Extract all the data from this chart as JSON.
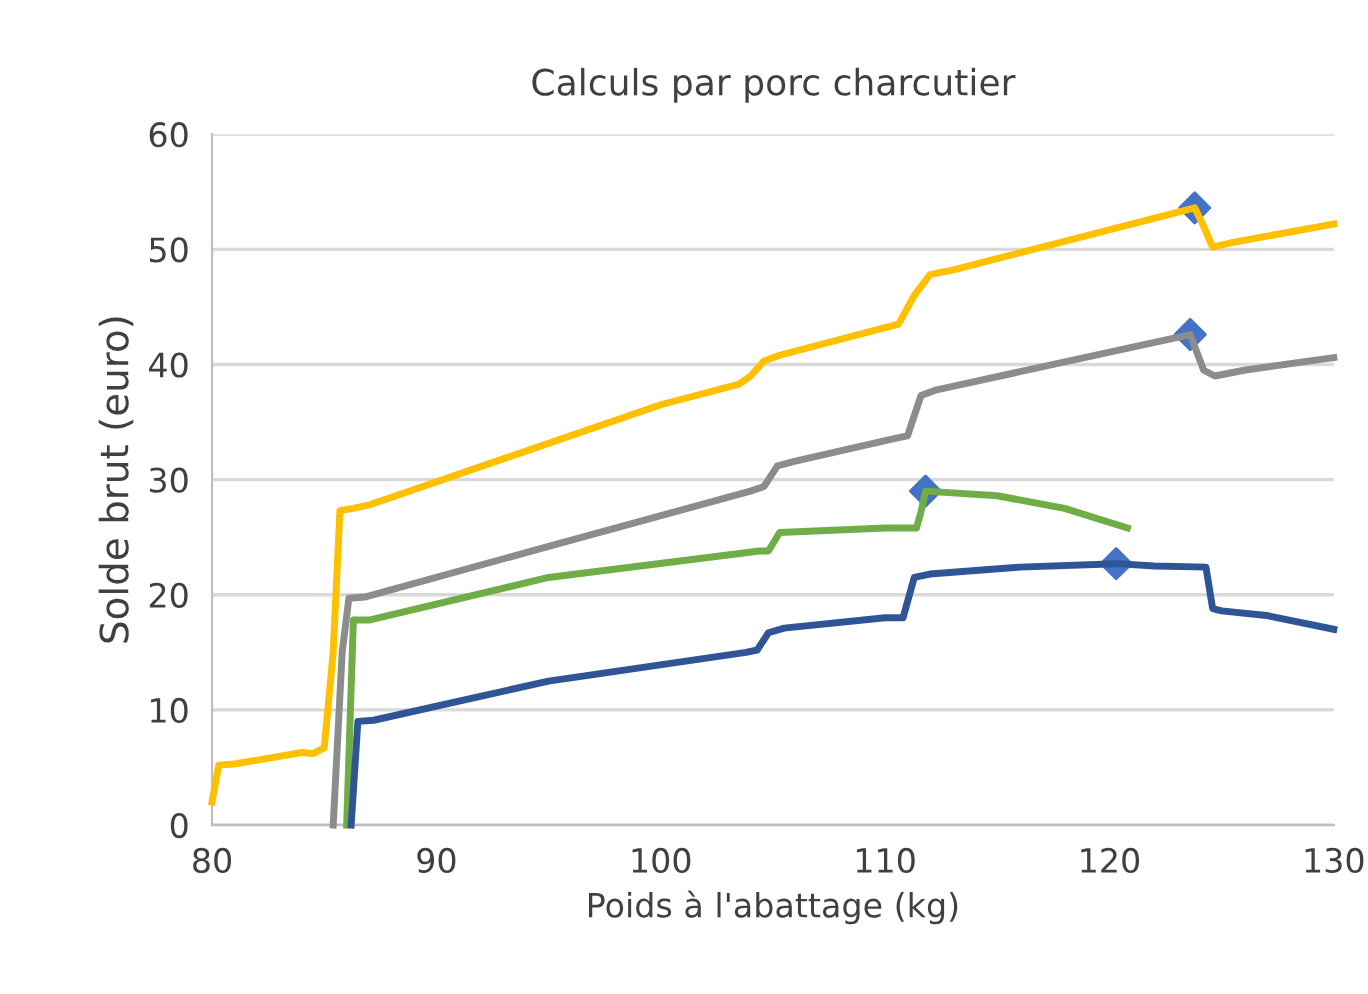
{
  "chart_data": {
    "type": "line",
    "title": "Calculs par porc charcutier",
    "xlabel": "Poids à l'abattage (kg)",
    "ylabel": "Solde brut (euro)",
    "xlim": [
      80,
      130
    ],
    "xticks": [
      80,
      90,
      100,
      110,
      120,
      130
    ],
    "ylim": [
      0,
      60
    ],
    "yticks": [
      0,
      10,
      20,
      30,
      40,
      50,
      60
    ],
    "grid": "y",
    "legend": false,
    "marker": "none",
    "line_style": "solid",
    "series": [
      {
        "color": "#ffc000",
        "x": [
          80,
          80.3,
          81,
          84,
          84.5,
          85,
          85.4,
          85.7,
          86.3,
          87,
          100,
          103.5,
          104,
          104.6,
          105.3,
          110,
          110.6,
          111.3,
          112,
          113,
          123.8,
          124.2,
          124.6,
          125.5,
          130
        ],
        "values": [
          2,
          5.2,
          5.3,
          6.3,
          6.2,
          6.7,
          15,
          27.3,
          27.5,
          27.8,
          36.5,
          38.3,
          39,
          40.3,
          40.8,
          43.2,
          43.5,
          46,
          47.8,
          48.2,
          53.6,
          52,
          50.2,
          50.6,
          52.2
        ]
      },
      {
        "color": "#8c8c8c",
        "x": [
          85.4,
          85.8,
          86.1,
          86.8,
          95,
          104,
          104.6,
          105.2,
          106,
          110.5,
          111,
          111.6,
          112.3,
          123.6,
          124.2,
          124.7,
          126,
          130
        ],
        "values": [
          0,
          15,
          19.7,
          19.8,
          24.2,
          29,
          29.4,
          31.2,
          31.6,
          33.6,
          33.8,
          37.3,
          37.8,
          42.6,
          39.5,
          39,
          39.5,
          40.6
        ]
      },
      {
        "color": "#70ad47",
        "x": [
          86,
          86.3,
          87,
          95,
          104.4,
          104.8,
          105.3,
          110,
          111.4,
          111.6,
          111.8,
          115,
          118,
          120.8
        ],
        "values": [
          0,
          17.8,
          17.8,
          21.5,
          23.8,
          23.8,
          25.4,
          25.8,
          25.8,
          27.2,
          29,
          28.6,
          27.5,
          25.8
        ]
      },
      {
        "color": "#2f5597",
        "x": [
          86.2,
          86.5,
          87.2,
          95,
          103.8,
          104.3,
          104.8,
          105.5,
          110,
          110.8,
          111.3,
          112,
          116,
          120.3,
          122,
          124.3,
          124.6,
          125,
          127,
          130
        ],
        "values": [
          0,
          9,
          9.1,
          12.5,
          15,
          15.2,
          16.7,
          17.1,
          18,
          18,
          21.5,
          21.8,
          22.4,
          22.7,
          22.5,
          22.4,
          18.8,
          18.6,
          18.2,
          17
        ]
      },
      {
        "type": "scatter",
        "marker": "diamond",
        "color": "#4472c4",
        "x": [
          123.8,
          123.6,
          111.8,
          120.3
        ],
        "values": [
          53.6,
          42.6,
          29,
          22.7
        ]
      }
    ]
  }
}
